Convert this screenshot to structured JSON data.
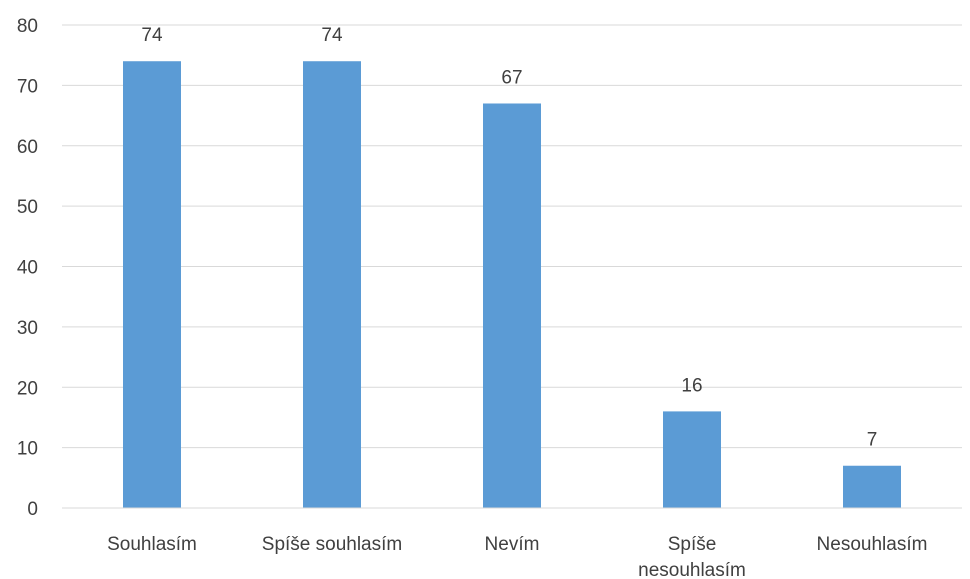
{
  "chart_data": {
    "type": "bar",
    "categories": [
      [
        "Souhlasím"
      ],
      [
        "Spíše souhlasím"
      ],
      [
        "Nevím"
      ],
      [
        "Spíše",
        "nesouhlasím"
      ],
      [
        "Nesouhlasím"
      ]
    ],
    "values": [
      74,
      74,
      67,
      16,
      7
    ],
    "data_labels": [
      "74",
      "74",
      "67",
      "16",
      "7"
    ],
    "ylim": [
      0,
      80
    ],
    "yticks": [
      0,
      10,
      20,
      30,
      40,
      50,
      60,
      70,
      80
    ],
    "grid": true,
    "legend": "none",
    "title": "",
    "xlabel": "",
    "ylabel": "",
    "bar_color": "#5B9BD5",
    "gridline_color": "#D9D9D9",
    "text_color": "#404040"
  }
}
